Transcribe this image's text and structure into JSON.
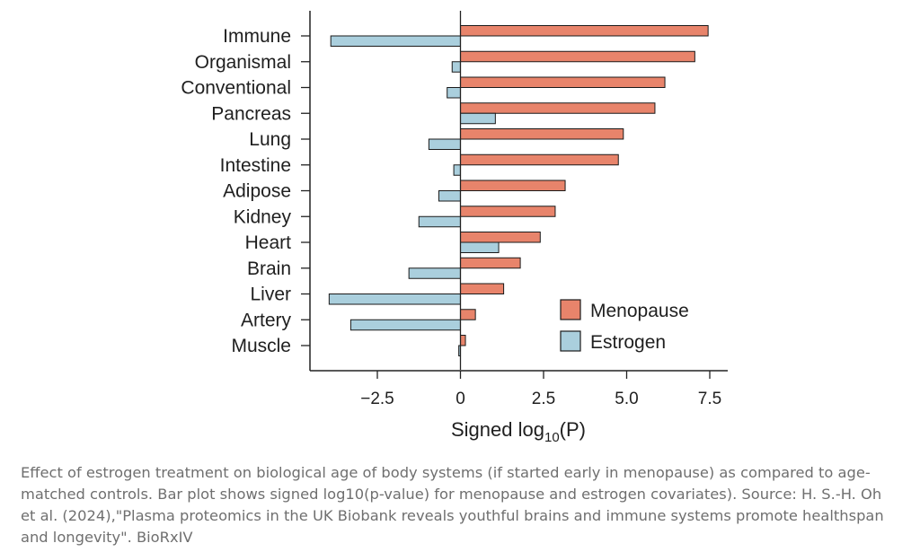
{
  "colors": {
    "menopause": "#e8846b",
    "estrogen": "#aacfdd",
    "bar_outline": "#1a1a1a",
    "axis": "#222222",
    "text": "#1f1f1f",
    "caption": "#6f6f6f"
  },
  "chart_data": {
    "type": "bar",
    "orientation": "horizontal",
    "categories": [
      "Immune",
      "Organismal",
      "Conventional",
      "Pancreas",
      "Lung",
      "Intestine",
      "Adipose",
      "Kidney",
      "Heart",
      "Brain",
      "Liver",
      "Artery",
      "Muscle"
    ],
    "series": [
      {
        "name": "Menopause",
        "values": [
          7.45,
          7.05,
          6.15,
          5.85,
          4.9,
          4.75,
          3.15,
          2.85,
          2.4,
          1.8,
          1.3,
          0.45,
          0.15
        ]
      },
      {
        "name": "Estrogen",
        "values": [
          -3.9,
          -0.25,
          -0.4,
          1.05,
          -0.95,
          -0.2,
          -0.65,
          -1.25,
          1.15,
          -1.55,
          -3.95,
          -3.3,
          -0.05
        ]
      }
    ],
    "xlabel": "Signed log",
    "xlabel_sub": "10",
    "xlabel_arg": "(P)",
    "xticks": [
      -2.5,
      0,
      2.5,
      5.0,
      7.5
    ],
    "xtick_labels": [
      "−2.5",
      "0",
      "2.5",
      "5.0",
      "7.5"
    ],
    "xlim": [
      -4.5,
      8.0
    ],
    "zero_line": true,
    "grid": false,
    "legend_position": "bottom-right"
  },
  "caption": "Effect of estrogen treatment on biological age of body systems (if started early in menopause) as compared to age-matched controls. Bar plot shows signed log10(p-value) for menopause and estrogen covariates). Source: H. S.-H. Oh et al. (2024),\"Plasma proteomics in the UK Biobank reveals youthful brains and immune systems promote healthspan and longevity\". BioRxIV"
}
